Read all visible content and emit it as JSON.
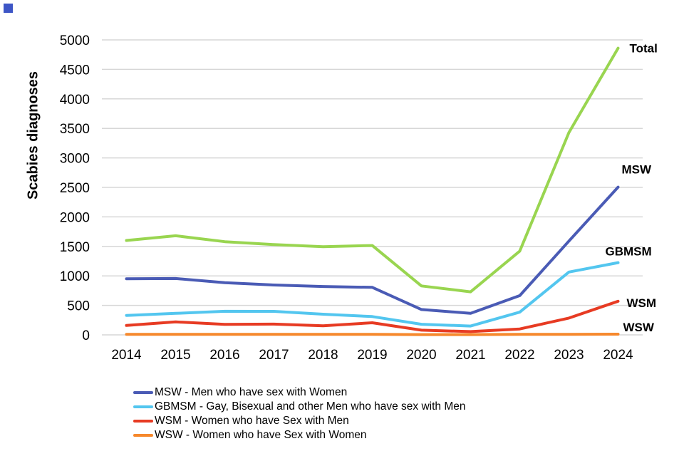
{
  "page": {
    "background_color": "#ffffff"
  },
  "decoration": {
    "corner_mark_color": "#3d55c6"
  },
  "chart_data": {
    "type": "line",
    "title": "",
    "ylabel": "Scabies diagnoses",
    "xlabel": "",
    "x_categories": [
      "2014",
      "2015",
      "2016",
      "2017",
      "2018",
      "2019",
      "2020",
      "2021",
      "2022",
      "2023",
      "2024"
    ],
    "ylim": [
      0,
      5000
    ],
    "y_tick_step": 500,
    "y_ticks": [
      0,
      500,
      1000,
      1500,
      2000,
      2500,
      3000,
      3500,
      4000,
      4500,
      5000
    ],
    "grid": "horizontal",
    "gridline_color": "#d7d7d7",
    "series": [
      {
        "name": "Total",
        "end_label": "Total",
        "color": "#99d550",
        "values": [
          1600,
          1680,
          1580,
          1530,
          1495,
          1515,
          830,
          730,
          1420,
          3430,
          4860
        ]
      },
      {
        "name": "MSW",
        "end_label": "MSW",
        "color": "#4a5bb5",
        "values": [
          950,
          955,
          885,
          845,
          820,
          805,
          430,
          365,
          665,
          1590,
          2505
        ]
      },
      {
        "name": "GBMSM",
        "end_label": "GBMSM",
        "color": "#53c6ef",
        "values": [
          330,
          365,
          400,
          398,
          350,
          310,
          180,
          150,
          385,
          1065,
          1225
        ]
      },
      {
        "name": "WSM",
        "end_label": "WSM",
        "color": "#e73b23",
        "values": [
          160,
          220,
          178,
          182,
          155,
          205,
          80,
          55,
          100,
          285,
          570
        ]
      },
      {
        "name": "WSW",
        "end_label": "WSW",
        "color": "#f6882c",
        "values": [
          10,
          10,
          10,
          10,
          10,
          10,
          5,
          5,
          8,
          10,
          12
        ]
      }
    ],
    "legend": {
      "position": "bottom-left",
      "items": [
        {
          "swatch_color": "#4a5bb5",
          "label": "MSW - Men who have sex with Women"
        },
        {
          "swatch_color": "#53c6ef",
          "label": "GBMSM - Gay, Bisexual and other Men who have sex with Men"
        },
        {
          "swatch_color": "#e73b23",
          "label": "WSM - Women who have Sex with Men"
        },
        {
          "swatch_color": "#f6882c",
          "label": "WSW - Women who have Sex with Women"
        }
      ]
    }
  }
}
